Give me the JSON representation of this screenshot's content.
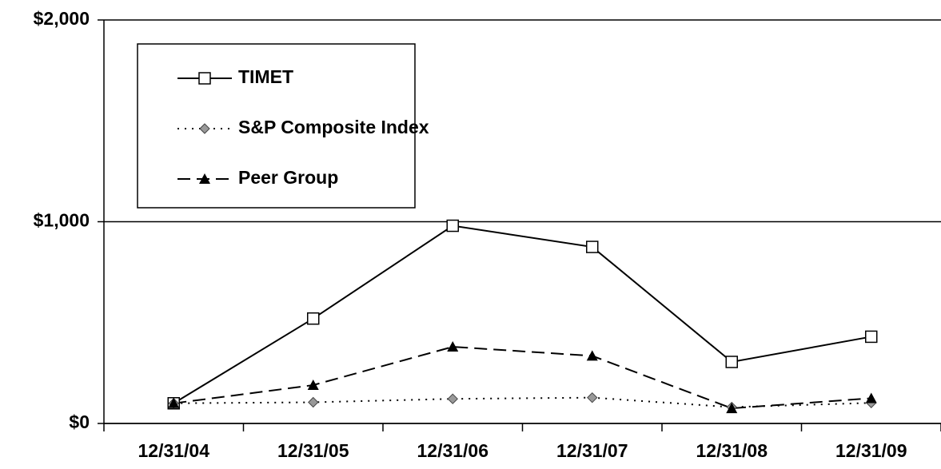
{
  "chart_data": {
    "type": "line",
    "categories": [
      "12/31/04",
      "12/31/05",
      "12/31/06",
      "12/31/07",
      "12/31/08",
      "12/31/09"
    ],
    "series": [
      {
        "name": "TIMET",
        "color": "#000000",
        "marker": "square",
        "dash": "solid",
        "values": [
          100,
          520,
          980,
          875,
          305,
          430
        ]
      },
      {
        "name": "S&P Composite Index",
        "color": "#000000",
        "marker": "diamond",
        "dash": "dotted",
        "values": [
          100,
          105,
          122,
          128,
          81,
          102
        ]
      },
      {
        "name": "Peer Group",
        "color": "#000000",
        "marker": "triangle",
        "dash": "dashed",
        "values": [
          100,
          190,
          380,
          335,
          75,
          125
        ]
      }
    ],
    "ylim": [
      0,
      2000
    ],
    "yticks": [
      {
        "value": 0,
        "label": "$0"
      },
      {
        "value": 1000,
        "label": "$1,000"
      },
      {
        "value": 2000,
        "label": "$2,000"
      }
    ],
    "grid": true,
    "legend": "upper left"
  }
}
